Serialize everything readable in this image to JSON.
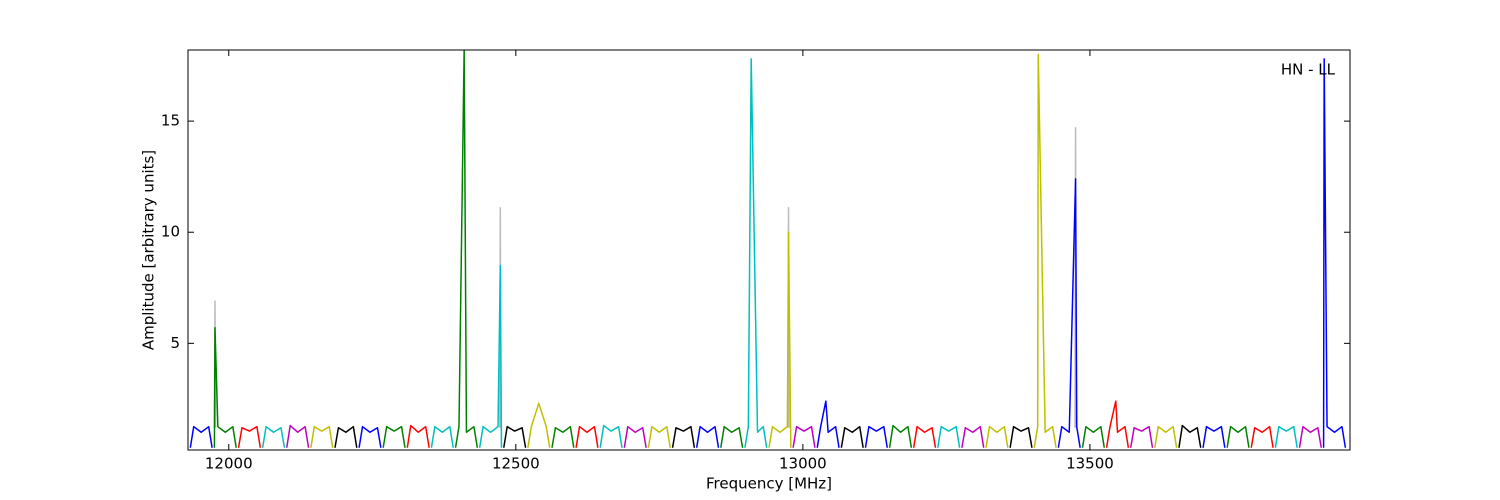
{
  "chart_data": {
    "type": "line",
    "annotation": "HN - LL",
    "x_label": "Frequency [MHz]",
    "y_label": "Amplitude [arbitrary units]",
    "xlim": [
      11929,
      13953
    ],
    "ylim": [
      0.2,
      18.2
    ],
    "xticks": [
      12000,
      12500,
      13000,
      13500
    ],
    "yticks": [
      5,
      10,
      15
    ],
    "series": [
      {
        "color": "#bbbbbb",
        "x": [
          11975,
          11976,
          11977,
          11978,
          12472,
          12473,
          12474,
          12475,
          12974,
          12975,
          12976,
          12977,
          13474,
          13475,
          13476
        ],
        "values": [
          1.2,
          6.9,
          1.2,
          null,
          1.2,
          11.1,
          1.2,
          null,
          1.2,
          11.1,
          1.2,
          null,
          1.2,
          14.7,
          1.2
        ]
      },
      {
        "color": "#0000ff",
        "x": [
          11933,
          11939,
          11952,
          11965,
          11971
        ],
        "values": [
          0.3,
          1.25,
          1.0,
          1.25,
          0.3
        ]
      },
      {
        "color": "#008000",
        "x": [
          11975,
          11976,
          11981,
          11994,
          12007,
          12013
        ],
        "values": [
          0.3,
          5.7,
          1.25,
          1.0,
          1.25,
          0.3
        ]
      },
      {
        "color": "#ff0000",
        "x": [
          12017,
          12023,
          12036,
          12049,
          12055
        ],
        "values": [
          0.3,
          1.2,
          1.05,
          1.25,
          0.3
        ]
      },
      {
        "color": "#00bfbf",
        "x": [
          12059,
          12065,
          12078,
          12091,
          12097
        ],
        "values": [
          0.3,
          1.25,
          1.0,
          1.2,
          0.3
        ]
      },
      {
        "color": "#bf00bf",
        "x": [
          12101,
          12107,
          12120,
          12133,
          12139
        ],
        "values": [
          0.3,
          1.3,
          1.0,
          1.25,
          0.3
        ]
      },
      {
        "color": "#bfbf00",
        "x": [
          12143,
          12149,
          12162,
          12175,
          12181
        ],
        "values": [
          0.3,
          1.25,
          1.05,
          1.25,
          0.3
        ]
      },
      {
        "color": "#000000",
        "x": [
          12185,
          12191,
          12204,
          12217,
          12223
        ],
        "values": [
          0.3,
          1.2,
          1.0,
          1.25,
          0.3
        ]
      },
      {
        "color": "#0000ff",
        "x": [
          12227,
          12233,
          12246,
          12259,
          12265
        ],
        "values": [
          0.3,
          1.25,
          1.0,
          1.2,
          0.3
        ]
      },
      {
        "color": "#008000",
        "x": [
          12269,
          12275,
          12288,
          12301,
          12307
        ],
        "values": [
          0.3,
          1.25,
          1.05,
          1.25,
          0.3
        ]
      },
      {
        "color": "#ff0000",
        "x": [
          12311,
          12317,
          12330,
          12343,
          12349
        ],
        "values": [
          0.3,
          1.3,
          1.0,
          1.25,
          0.3
        ]
      },
      {
        "color": "#00bfbf",
        "x": [
          12353,
          12359,
          12372,
          12385,
          12391
        ],
        "values": [
          0.3,
          1.25,
          1.0,
          1.25,
          0.3
        ]
      },
      {
        "color": "#008000",
        "x": [
          12395,
          12401,
          12410,
          12414,
          12427,
          12433
        ],
        "values": [
          0.3,
          1.25,
          18.2,
          1.0,
          1.25,
          0.3
        ]
      },
      {
        "color": "#00bfbf",
        "x": [
          12437,
          12443,
          12456,
          12469,
          12473,
          12475
        ],
        "values": [
          0.3,
          1.25,
          1.0,
          1.25,
          8.5,
          0.3
        ]
      },
      {
        "color": "#000000",
        "x": [
          12479,
          12485,
          12498,
          12511,
          12517
        ],
        "values": [
          0.3,
          1.25,
          1.05,
          1.2,
          0.3
        ]
      },
      {
        "color": "#bfbf00",
        "x": [
          12521,
          12527,
          12540,
          12553,
          12559
        ],
        "values": [
          0.3,
          1.25,
          2.3,
          1.25,
          0.3
        ]
      },
      {
        "color": "#008000",
        "x": [
          12563,
          12569,
          12582,
          12595,
          12601
        ],
        "values": [
          0.3,
          1.2,
          1.0,
          1.25,
          0.3
        ]
      },
      {
        "color": "#ff0000",
        "x": [
          12605,
          12611,
          12624,
          12637,
          12643
        ],
        "values": [
          0.3,
          1.25,
          1.0,
          1.25,
          0.3
        ]
      },
      {
        "color": "#00bfbf",
        "x": [
          12647,
          12653,
          12666,
          12679,
          12685
        ],
        "values": [
          0.3,
          1.3,
          1.05,
          1.25,
          0.3
        ]
      },
      {
        "color": "#bf00bf",
        "x": [
          12689,
          12695,
          12708,
          12721,
          12727
        ],
        "values": [
          0.3,
          1.25,
          1.0,
          1.2,
          0.3
        ]
      },
      {
        "color": "#bfbf00",
        "x": [
          12731,
          12737,
          12750,
          12763,
          12769
        ],
        "values": [
          0.3,
          1.25,
          1.0,
          1.25,
          0.3
        ]
      },
      {
        "color": "#000000",
        "x": [
          12773,
          12779,
          12792,
          12805,
          12811
        ],
        "values": [
          0.3,
          1.2,
          1.05,
          1.25,
          0.3
        ]
      },
      {
        "color": "#0000ff",
        "x": [
          12815,
          12821,
          12834,
          12847,
          12853
        ],
        "values": [
          0.3,
          1.25,
          1.0,
          1.25,
          0.3
        ]
      },
      {
        "color": "#008000",
        "x": [
          12857,
          12863,
          12876,
          12889,
          12895
        ],
        "values": [
          0.3,
          1.25,
          1.0,
          1.2,
          0.3
        ]
      },
      {
        "color": "#00bfbf",
        "x": [
          12899,
          12905,
          12910,
          12921,
          12931,
          12937
        ],
        "values": [
          0.3,
          1.25,
          17.8,
          1.0,
          1.25,
          0.3
        ]
      },
      {
        "color": "#bfbf00",
        "x": [
          12941,
          12947,
          12960,
          12973,
          12975,
          12979
        ],
        "values": [
          0.3,
          1.25,
          1.0,
          1.25,
          10,
          0.3
        ]
      },
      {
        "color": "#bf00bf",
        "x": [
          12983,
          12989,
          13002,
          13015,
          13021
        ],
        "values": [
          0.3,
          1.25,
          1.05,
          1.25,
          0.3
        ]
      },
      {
        "color": "#0000ff",
        "x": [
          13025,
          13031,
          13040,
          13044,
          13057,
          13063
        ],
        "values": [
          0.3,
          1.25,
          2.4,
          1.0,
          1.25,
          0.3
        ]
      },
      {
        "color": "#000000",
        "x": [
          13067,
          13073,
          13086,
          13099,
          13105
        ],
        "values": [
          0.3,
          1.2,
          1.0,
          1.25,
          0.3
        ]
      },
      {
        "color": "#0000ff",
        "x": [
          13109,
          13115,
          13128,
          13141,
          13147
        ],
        "values": [
          0.3,
          1.25,
          1.05,
          1.25,
          0.3
        ]
      },
      {
        "color": "#008000",
        "x": [
          13151,
          13157,
          13170,
          13183,
          13189
        ],
        "values": [
          0.3,
          1.3,
          1.0,
          1.25,
          0.3
        ]
      },
      {
        "color": "#ff0000",
        "x": [
          13193,
          13199,
          13212,
          13225,
          13231
        ],
        "values": [
          0.3,
          1.25,
          1.0,
          1.2,
          0.3
        ]
      },
      {
        "color": "#00bfbf",
        "x": [
          13235,
          13241,
          13254,
          13267,
          13273
        ],
        "values": [
          0.3,
          1.25,
          1.05,
          1.25,
          0.3
        ]
      },
      {
        "color": "#bf00bf",
        "x": [
          13277,
          13283,
          13296,
          13309,
          13315
        ],
        "values": [
          0.3,
          1.2,
          1.0,
          1.25,
          0.3
        ]
      },
      {
        "color": "#bfbf00",
        "x": [
          13319,
          13325,
          13338,
          13351,
          13357
        ],
        "values": [
          0.3,
          1.25,
          1.0,
          1.25,
          0.3
        ]
      },
      {
        "color": "#000000",
        "x": [
          13361,
          13367,
          13380,
          13393,
          13399
        ],
        "values": [
          0.3,
          1.25,
          1.05,
          1.2,
          0.3
        ]
      },
      {
        "color": "#bfbf00",
        "x": [
          13403,
          13409,
          13410,
          13422,
          13435,
          13441
        ],
        "values": [
          0.3,
          1.25,
          18,
          1.0,
          1.25,
          0.3
        ]
      },
      {
        "color": "#0000ff",
        "x": [
          13445,
          13451,
          13464,
          13475,
          13477,
          13483
        ],
        "values": [
          0.3,
          1.25,
          1.0,
          12.4,
          1.25,
          0.3
        ]
      },
      {
        "color": "#008000",
        "x": [
          13487,
          13493,
          13506,
          13519,
          13525
        ],
        "values": [
          0.3,
          1.25,
          1.0,
          1.25,
          0.3
        ]
      },
      {
        "color": "#ff0000",
        "x": [
          13529,
          13535,
          13545,
          13548,
          13561,
          13567
        ],
        "values": [
          0.3,
          1.25,
          2.4,
          1.0,
          1.25,
          0.3
        ]
      },
      {
        "color": "#bf00bf",
        "x": [
          13571,
          13577,
          13590,
          13603,
          13609
        ],
        "values": [
          0.3,
          1.2,
          1.05,
          1.25,
          0.3
        ]
      },
      {
        "color": "#bfbf00",
        "x": [
          13613,
          13619,
          13632,
          13645,
          13651
        ],
        "values": [
          0.3,
          1.25,
          1.0,
          1.25,
          0.3
        ]
      },
      {
        "color": "#000000",
        "x": [
          13655,
          13661,
          13674,
          13687,
          13693
        ],
        "values": [
          0.3,
          1.3,
          1.0,
          1.2,
          0.3
        ]
      },
      {
        "color": "#0000ff",
        "x": [
          13697,
          13703,
          13716,
          13729,
          13735
        ],
        "values": [
          0.3,
          1.25,
          1.05,
          1.25,
          0.3
        ]
      },
      {
        "color": "#008000",
        "x": [
          13739,
          13745,
          13758,
          13771,
          13777
        ],
        "values": [
          0.3,
          1.25,
          1.0,
          1.25,
          0.3
        ]
      },
      {
        "color": "#ff0000",
        "x": [
          13781,
          13787,
          13800,
          13813,
          13819
        ],
        "values": [
          0.3,
          1.2,
          1.0,
          1.25,
          0.3
        ]
      },
      {
        "color": "#00bfbf",
        "x": [
          13823,
          13829,
          13842,
          13855,
          13861
        ],
        "values": [
          0.3,
          1.25,
          1.05,
          1.25,
          0.3
        ]
      },
      {
        "color": "#bf00bf",
        "x": [
          13865,
          13871,
          13884,
          13897,
          13903
        ],
        "values": [
          0.3,
          1.25,
          1.0,
          1.2,
          0.3
        ]
      },
      {
        "color": "#0000ff",
        "x": [
          13907,
          13908,
          13913,
          13926,
          13939,
          13945
        ],
        "values": [
          0.3,
          17.8,
          1.25,
          1.0,
          1.25,
          0.3
        ]
      }
    ]
  }
}
